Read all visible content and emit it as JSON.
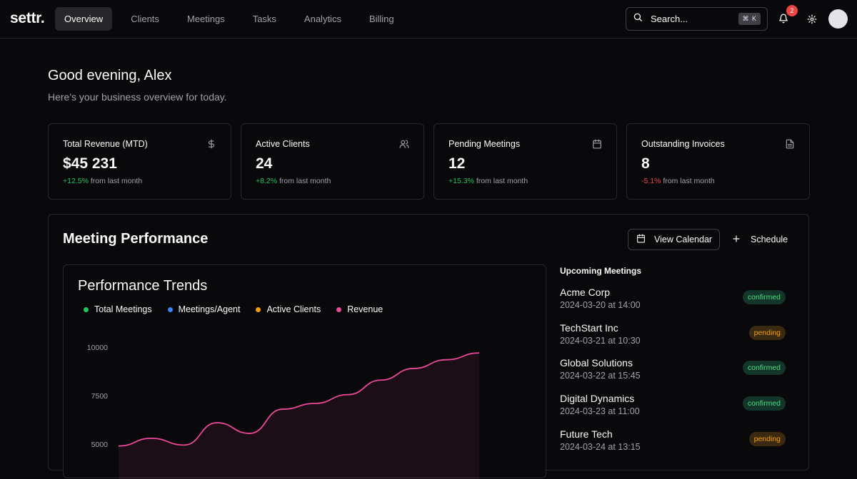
{
  "app": {
    "logo": "settr."
  },
  "nav": {
    "tabs": [
      {
        "label": "Overview",
        "active": true
      },
      {
        "label": "Clients"
      },
      {
        "label": "Meetings"
      },
      {
        "label": "Tasks"
      },
      {
        "label": "Analytics"
      },
      {
        "label": "Billing"
      }
    ],
    "search_placeholder": "Search...",
    "search_shortcut": "⌘ K",
    "notification_count": "2"
  },
  "header": {
    "greeting": "Good evening, Alex",
    "subtitle": "Here's your business overview for today."
  },
  "stats": [
    {
      "title": "Total Revenue (MTD)",
      "value": "$45 231",
      "delta": "+12.5%",
      "delta_text": "from last month",
      "trend": "up",
      "icon": "dollar-icon"
    },
    {
      "title": "Active Clients",
      "value": "24",
      "delta": "+8.2%",
      "delta_text": "from last month",
      "trend": "up",
      "icon": "users-icon"
    },
    {
      "title": "Pending Meetings",
      "value": "12",
      "delta": "+15.3%",
      "delta_text": "from last month",
      "trend": "up",
      "icon": "calendar-icon"
    },
    {
      "title": "Outstanding Invoices",
      "value": "8",
      "delta": "-5.1%",
      "delta_text": "from last month",
      "trend": "down",
      "icon": "file-icon"
    }
  ],
  "panel": {
    "title": "Meeting Performance",
    "view_calendar": "View Calendar",
    "schedule": "Schedule"
  },
  "chart": {
    "title": "Performance Trends",
    "legend": [
      {
        "name": "Total Meetings",
        "color": "#22c55e"
      },
      {
        "name": "Meetings/Agent",
        "color": "#3b82f6"
      },
      {
        "name": "Active Clients",
        "color": "#f59e0b"
      },
      {
        "name": "Revenue",
        "color": "#ec4899"
      }
    ]
  },
  "chart_data": {
    "type": "area",
    "title": "Performance Trends",
    "yticks": [
      10000,
      7500,
      5000
    ],
    "ylim": [
      5000,
      10000
    ],
    "series": [
      {
        "name": "Revenue",
        "color": "#ec4899",
        "values": [
          4900,
          5300,
          4950,
          6100,
          5550,
          6800,
          7100,
          7550,
          8300,
          8900,
          9350,
          9700
        ]
      }
    ]
  },
  "upcoming": {
    "title": "Upcoming Meetings",
    "items": [
      {
        "name": "Acme Corp",
        "time": "2024-03-20 at 14:00",
        "status": "confirmed"
      },
      {
        "name": "TechStart Inc",
        "time": "2024-03-21 at 10:30",
        "status": "pending"
      },
      {
        "name": "Global Solutions",
        "time": "2024-03-22 at 15:45",
        "status": "confirmed"
      },
      {
        "name": "Digital Dynamics",
        "time": "2024-03-23 at 11:00",
        "status": "confirmed"
      },
      {
        "name": "Future Tech",
        "time": "2024-03-24 at 13:15",
        "status": "pending"
      }
    ]
  }
}
